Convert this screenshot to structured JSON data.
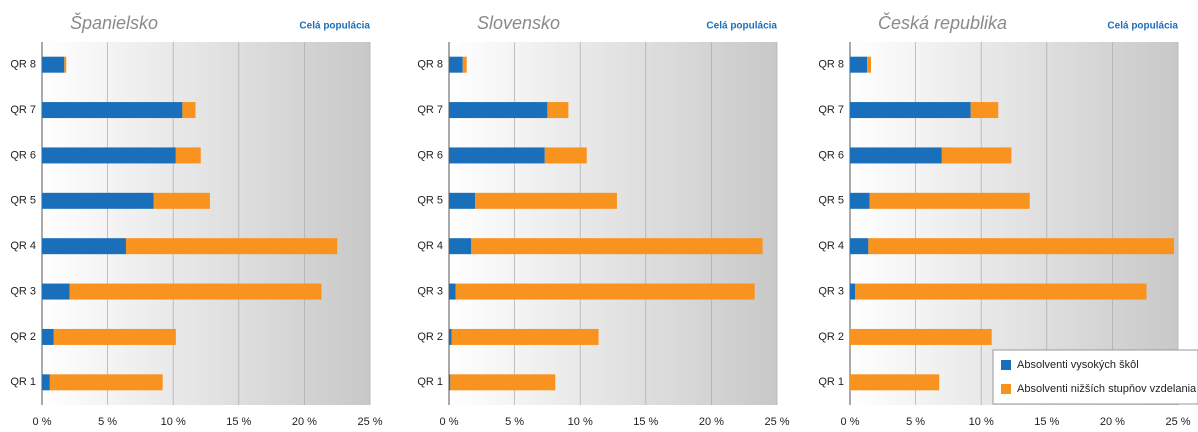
{
  "chart_data": [
    {
      "type": "stacked-barh",
      "title": "Španielsko",
      "subtitle": "Celá populácia",
      "categories": [
        "QR 1",
        "QR 2",
        "QR 3",
        "QR 4",
        "QR 5",
        "QR 6",
        "QR 7",
        "QR 8"
      ],
      "series": [
        {
          "color": "#1a6fba",
          "values": [
            0.6,
            0.9,
            2.1,
            6.4,
            8.5,
            10.2,
            10.7,
            1.7
          ]
        },
        {
          "color": "#f7931e",
          "values": [
            8.6,
            9.3,
            19.2,
            16.1,
            4.3,
            1.9,
            1.0,
            0.15
          ]
        }
      ],
      "xlim": [
        0,
        25
      ],
      "xticks": [
        {
          "value": 0,
          "label": "0 %"
        },
        {
          "value": 5,
          "label": "5 %"
        },
        {
          "value": 10,
          "label": "10 %"
        },
        {
          "value": 15,
          "label": "15 %"
        },
        {
          "value": 20,
          "label": "20 %"
        },
        {
          "value": 25,
          "label": "25 %"
        }
      ],
      "grid": true
    },
    {
      "type": "stacked-barh",
      "title": "Slovensko",
      "subtitle": "Celá populácia",
      "categories": [
        "QR 1",
        "QR 2",
        "QR 3",
        "QR 4",
        "QR 5",
        "QR 6",
        "QR 7",
        "QR 8"
      ],
      "series": [
        {
          "color": "#1a6fba",
          "values": [
            0.1,
            0.2,
            0.5,
            1.7,
            2.0,
            7.3,
            7.5,
            1.05
          ]
        },
        {
          "color": "#f7931e",
          "values": [
            8.0,
            11.2,
            22.8,
            22.2,
            10.8,
            3.2,
            1.6,
            0.3
          ]
        }
      ],
      "xlim": [
        0,
        25
      ],
      "xticks": [
        {
          "value": 0,
          "label": "0 %"
        },
        {
          "value": 5,
          "label": "5 %"
        },
        {
          "value": 10,
          "label": "10 %"
        },
        {
          "value": 15,
          "label": "15 %"
        },
        {
          "value": 20,
          "label": "20 %"
        },
        {
          "value": 25,
          "label": "25 %"
        }
      ],
      "grid": true
    },
    {
      "type": "stacked-barh",
      "title": "Česká republika",
      "subtitle": "Celá populácia",
      "categories": [
        "QR 1",
        "QR 2",
        "QR 3",
        "QR 4",
        "QR 5",
        "QR 6",
        "QR 7",
        "QR 8"
      ],
      "series": [
        {
          "name": "Absolventi vysokých škôl",
          "color": "#1a6fba",
          "values": [
            0,
            0,
            0.4,
            1.4,
            1.5,
            7.0,
            9.2,
            1.3
          ]
        },
        {
          "name": "Absolventi nižších stupňov vzdelania",
          "color": "#f7931e",
          "values": [
            6.8,
            10.8,
            22.2,
            23.3,
            12.2,
            5.3,
            2.1,
            0.3
          ]
        }
      ],
      "xlim": [
        0,
        25
      ],
      "xticks": [
        {
          "value": 0,
          "label": "0 %"
        },
        {
          "value": 5,
          "label": "5 %"
        },
        {
          "value": 10,
          "label": "10 %"
        },
        {
          "value": 15,
          "label": "15 %"
        },
        {
          "value": 20,
          "label": "20 %"
        },
        {
          "value": 25,
          "label": "25 %"
        }
      ],
      "grid": true,
      "legend": "lower right"
    }
  ]
}
